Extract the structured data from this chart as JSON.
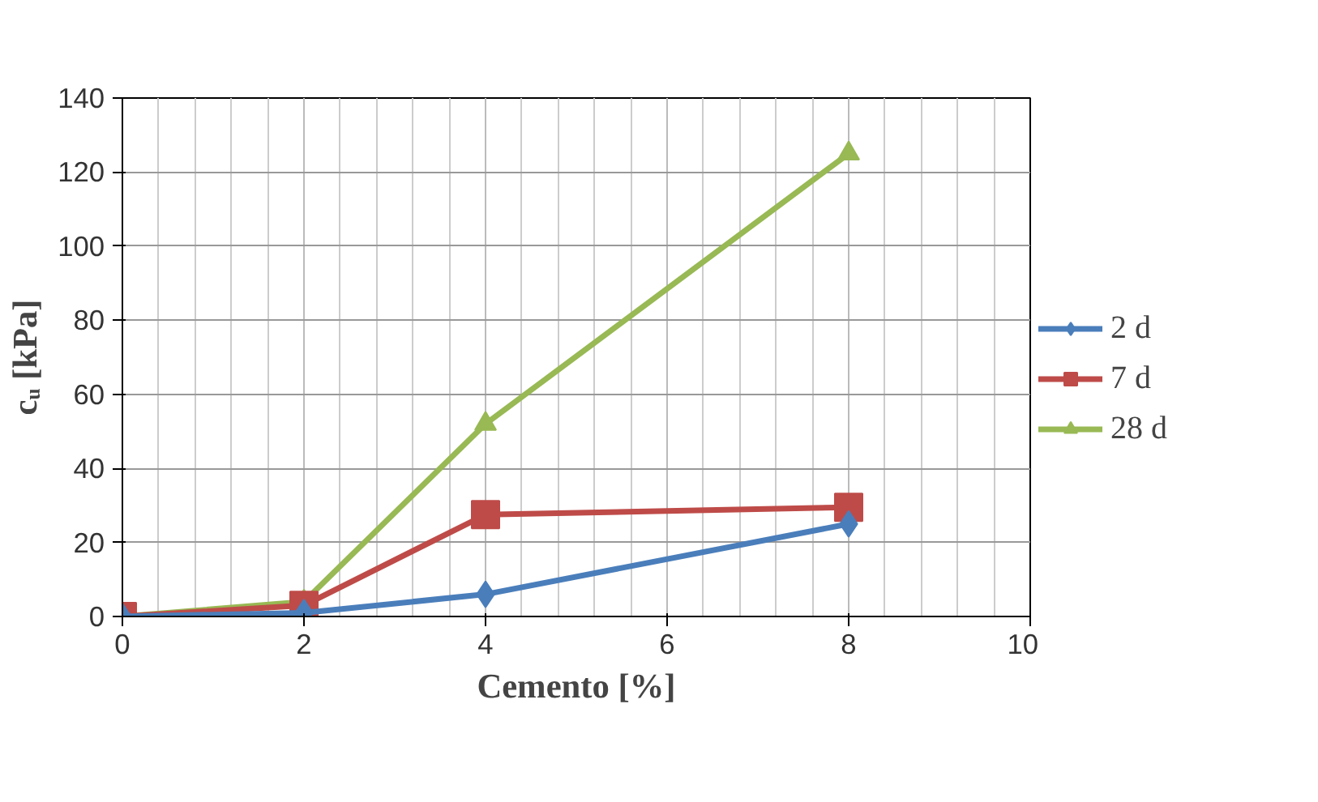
{
  "chart_data": {
    "type": "line",
    "xlabel": "Cemento [%]",
    "ylabel": "cᵤ [kPa]",
    "x": [
      0,
      2,
      4,
      8
    ],
    "series": [
      {
        "name": "2 d",
        "color": "#4a7ebb",
        "marker": "diamond",
        "values": [
          0,
          1,
          6,
          25
        ]
      },
      {
        "name": "7 d",
        "color": "#be4b48",
        "marker": "square",
        "values": [
          0,
          3,
          27.5,
          29.5
        ]
      },
      {
        "name": "28 d",
        "color": "#98b954",
        "marker": "triangle",
        "values": [
          0,
          4,
          52,
          125
        ]
      }
    ],
    "xlim": [
      0,
      10
    ],
    "xticks": [
      0,
      2,
      4,
      6,
      8,
      10
    ],
    "ylim": [
      0,
      140
    ],
    "yticks": [
      0,
      20,
      40,
      60,
      80,
      100,
      120,
      140
    ],
    "grid": true,
    "legend": "right",
    "line_style": "solid"
  }
}
